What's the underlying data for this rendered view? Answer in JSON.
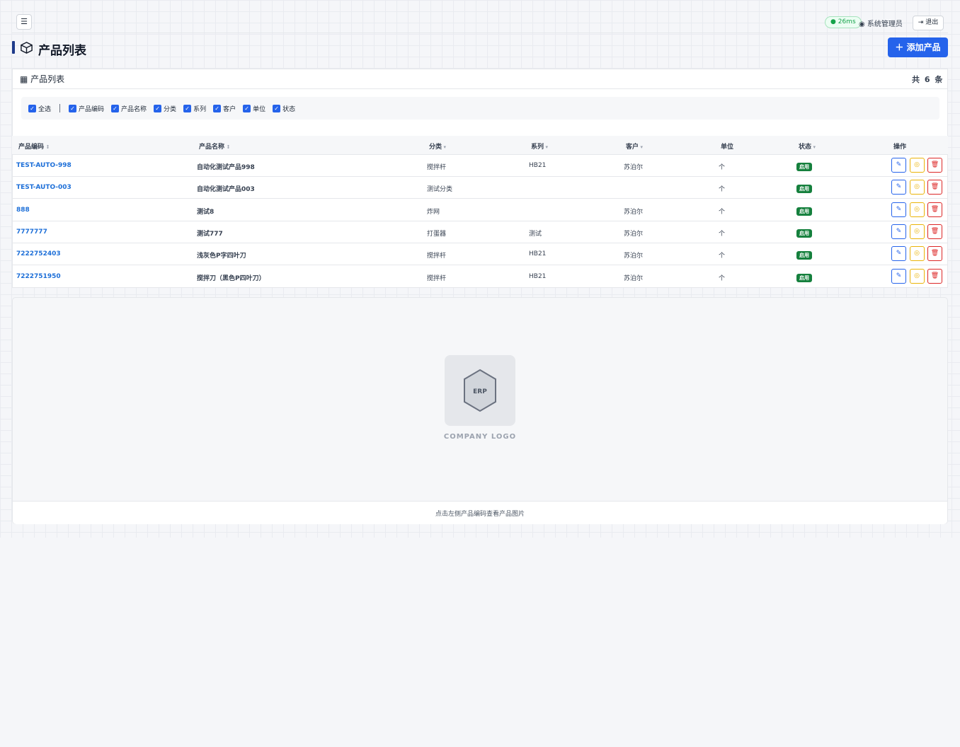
{
  "header": {
    "latency": "26ms",
    "user": "系统管理员",
    "logout": "退出"
  },
  "page": {
    "title": "产品列表",
    "add_button": "添加产品"
  },
  "card": {
    "title": "产品列表",
    "count": "共 6 条"
  },
  "column_toggles": [
    "全选",
    "产品编码",
    "产品名称",
    "分类",
    "系列",
    "客户",
    "单位",
    "状态"
  ],
  "table": {
    "headers": [
      "产品编码",
      "产品名称",
      "分类",
      "系列",
      "客户",
      "单位",
      "状态",
      "操作"
    ],
    "rows": [
      [
        "TEST-AUTO-998",
        "自动化测试产品998",
        "搅拌杆",
        "HB21",
        "苏泊尔",
        "个",
        "启用"
      ],
      [
        "TEST-AUTO-003",
        "自动化测试产品003",
        "测试分类",
        null,
        null,
        "个",
        "启用"
      ],
      [
        "888",
        "测试8",
        "炸网",
        null,
        "苏泊尔",
        "个",
        "启用"
      ],
      [
        "7777777",
        "测试777",
        "打蛋器",
        "测试",
        "苏泊尔",
        "个",
        "启用"
      ],
      [
        "7222752403",
        "浅灰色P字四叶刀",
        "搅拌杆",
        "HB21",
        "苏泊尔",
        "个",
        "启用"
      ],
      [
        "7222751950",
        "搅拌刀（黑色P四叶刀）",
        "搅拌杆",
        "HB21",
        "苏泊尔",
        "个",
        "启用"
      ]
    ]
  },
  "image_panel": {
    "logo_mark": "ERP",
    "logo_text": "COMPANY LOGO",
    "hint": "点击左侧产品编码查看产品图片"
  }
}
